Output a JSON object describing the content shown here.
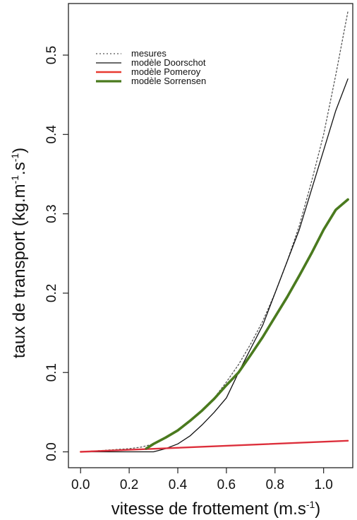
{
  "chart_data": {
    "type": "line",
    "title": "",
    "xlabel": "vitesse de frottement (m.s",
    "xlabel_sup": "-1",
    "xlabel_close": ")",
    "ylabel": "taux de transport (kg.m",
    "ylabel_sup1": "-1",
    "ylabel_mid": ".s",
    "ylabel_sup2": "-1",
    "ylabel_close": ")",
    "xlim": [
      -0.05,
      1.12
    ],
    "ylim": [
      -0.02,
      0.565
    ],
    "xticks": [
      0.0,
      0.2,
      0.4,
      0.6,
      0.8,
      1.0
    ],
    "xtick_labels": [
      "0.0",
      "0.2",
      "0.4",
      "0.6",
      "0.8",
      "1.0"
    ],
    "yticks": [
      0.0,
      0.1,
      0.2,
      0.3,
      0.4,
      0.5
    ],
    "ytick_labels": [
      "0.0",
      "0.1",
      "0.2",
      "0.3",
      "0.4",
      "0.5"
    ],
    "grid": false,
    "legend_position": "top-left",
    "series": [
      {
        "name": "mesures",
        "color": "#555555",
        "style": "dotted",
        "x": [
          0.0,
          0.1,
          0.2,
          0.25,
          0.3,
          0.35,
          0.4,
          0.45,
          0.5,
          0.55,
          0.6,
          0.65,
          0.7,
          0.75,
          0.8,
          0.85,
          0.9,
          0.95,
          1.0,
          1.05,
          1.1
        ],
        "y": [
          0.0,
          0.002,
          0.004,
          0.006,
          0.01,
          0.018,
          0.026,
          0.038,
          0.052,
          0.068,
          0.088,
          0.11,
          0.136,
          0.165,
          0.2,
          0.24,
          0.285,
          0.34,
          0.4,
          0.475,
          0.555
        ]
      },
      {
        "name": "modèle Doorschot",
        "color": "#111111",
        "style": "solid",
        "x": [
          0.0,
          0.1,
          0.2,
          0.3,
          0.35,
          0.4,
          0.45,
          0.5,
          0.55,
          0.6,
          0.65,
          0.7,
          0.75,
          0.8,
          0.85,
          0.9,
          0.95,
          1.0,
          1.05,
          1.1
        ],
        "y": [
          0.0,
          0.0,
          0.0,
          0.0,
          0.004,
          0.01,
          0.02,
          0.034,
          0.05,
          0.068,
          0.1,
          0.13,
          0.16,
          0.2,
          0.24,
          0.28,
          0.33,
          0.38,
          0.43,
          0.47
        ]
      },
      {
        "name": "modèle Pomeroy",
        "color": "#e83a30",
        "style": "solid",
        "x": [
          0.0,
          1.1
        ],
        "y": [
          0.0,
          0.014
        ]
      },
      {
        "name": "modèle Sorrensen",
        "color": "#4a7a1e",
        "style": "solid",
        "x": [
          0.27,
          0.3,
          0.35,
          0.4,
          0.45,
          0.5,
          0.55,
          0.6,
          0.65,
          0.7,
          0.75,
          0.8,
          0.85,
          0.9,
          0.95,
          1.0,
          1.05,
          1.1
        ],
        "y": [
          0.004,
          0.01,
          0.018,
          0.027,
          0.039,
          0.052,
          0.067,
          0.084,
          0.1,
          0.122,
          0.145,
          0.17,
          0.195,
          0.222,
          0.25,
          0.28,
          0.305,
          0.318
        ]
      }
    ]
  }
}
